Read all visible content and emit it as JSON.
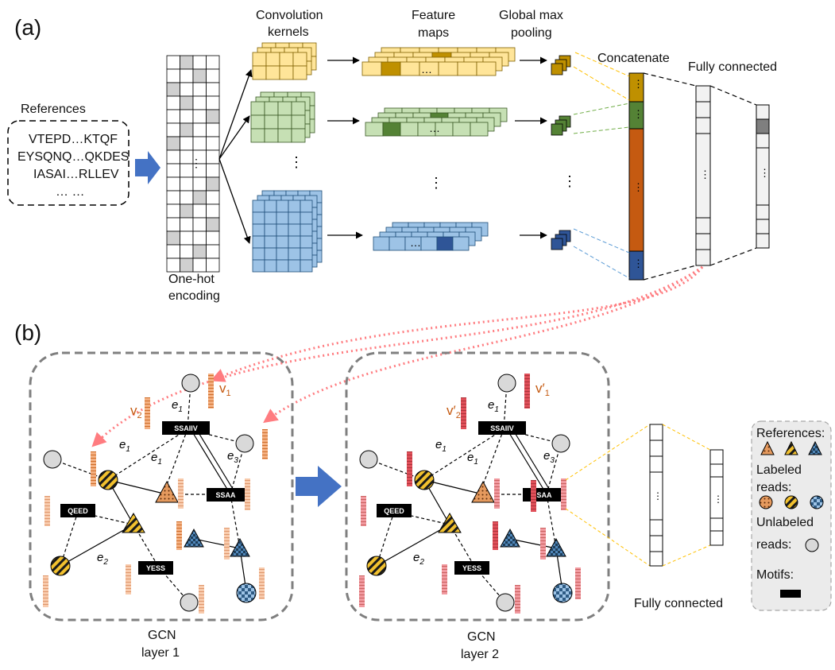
{
  "panel_a": {
    "label": "(a)",
    "references_title": "References",
    "sequences": [
      "VTEPD…KTQF",
      "EYSQNQ…QKDES",
      "IASAI…RLLEV",
      "… …"
    ],
    "one_hot_label_1": "One-hot",
    "one_hot_label_2": "encoding",
    "conv_label_1": "Convolution",
    "conv_label_2": "kernels",
    "feature_label_1": "Feature",
    "feature_label_2": "maps",
    "pool_label_1": "Global max",
    "pool_label_2": "pooling",
    "concat_label": "Concatenate",
    "fc_label": "Fully connected",
    "ellipsis": "…"
  },
  "panel_b": {
    "label": "(b)",
    "layer1_label_1": "GCN",
    "layer1_label_2": "layer 1",
    "layer2_label_1": "GCN",
    "layer2_label_2": "layer 2",
    "fc_label": "Fully connected",
    "motifs": [
      "SSAIIV",
      "SSAA",
      "QEED",
      "YESS"
    ],
    "edges": [
      "e",
      "e",
      "e",
      "e"
    ],
    "edge_subs": [
      "1",
      "1",
      "1",
      "3",
      "2"
    ],
    "vec_labels_1": [
      "v",
      "v"
    ],
    "vec_subs_1": [
      "1",
      "2"
    ],
    "vec_labels_2": [
      "v′",
      "v′"
    ],
    "legend": {
      "references": "References:",
      "labeled_1": "Labeled",
      "labeled_2": "reads:",
      "unlabeled_1": "Unlabeled",
      "unlabeled_2": "reads:",
      "motifs": "Motifs:"
    }
  },
  "colors": {
    "yellow": "#ffe599",
    "green": "#c6e0b4",
    "blue": "#9dc3e6",
    "gold": "#bf9000",
    "darkgreen": "#548235",
    "orange": "#c55a11",
    "navy": "#2f5597",
    "pink_arrow": "#ff7c80",
    "vec1": "#f4b183",
    "vec2": "#e57c84"
  }
}
